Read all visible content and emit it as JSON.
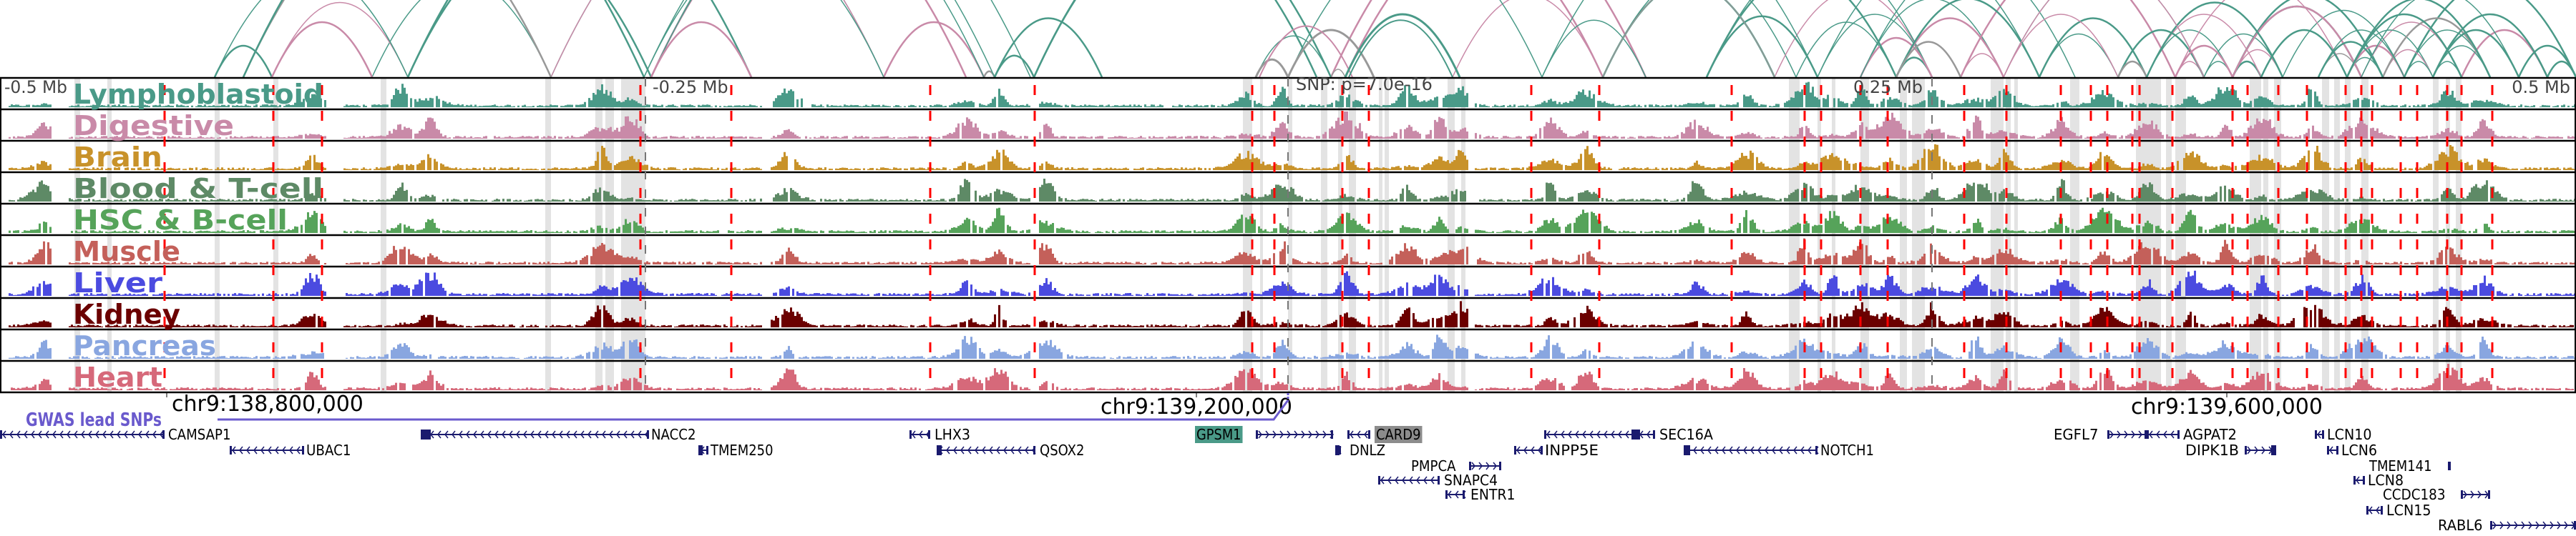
{
  "axis": {
    "minus_half": "-0.5 Mb",
    "minus_quarter": "-0.25 Mb",
    "snp": "SNP: p=7.0e-16",
    "plus_quarter": "0.25 Mb",
    "plus_half": "0.5 Mb"
  },
  "coords": [
    "chr9:138,800,000",
    "chr9:139,200,000",
    "chr9:139,600,000"
  ],
  "gwas_label": "GWAS lead SNPs",
  "colors": {
    "arc_teal": "#4a9a88",
    "arc_pink": "#c98aa8",
    "arc_gray": "#999999",
    "highlight_band": "#e3e3e3",
    "red_marker": "#ff0000",
    "gene": "#1a1a6e",
    "gwas": "#6a5acd"
  },
  "tracks": [
    {
      "label": "Lymphoblastoid",
      "color": "#4a9a88"
    },
    {
      "label": "Digestive",
      "color": "#c98aa8"
    },
    {
      "label": "Brain",
      "color": "#c8922a"
    },
    {
      "label": "Blood & T-cell",
      "color": "#5e8a66"
    },
    {
      "label": "HSC & B-cell",
      "color": "#56a35a"
    },
    {
      "label": "Muscle",
      "color": "#c4605a"
    },
    {
      "label": "Liver",
      "color": "#4b4be0"
    },
    {
      "label": "Kidney",
      "color": "#6b0000"
    },
    {
      "label": "Pancreas",
      "color": "#89a6e0"
    },
    {
      "label": "Heart",
      "color": "#d6697a"
    }
  ],
  "genes": [
    {
      "name": "CAMSAP1"
    },
    {
      "name": "UBAC1"
    },
    {
      "name": "NACC2"
    },
    {
      "name": "TMEM250"
    },
    {
      "name": "LHX3"
    },
    {
      "name": "QSOX2"
    },
    {
      "name": "GPSM1",
      "highlight": "#4a9a88"
    },
    {
      "name": "CARD9",
      "highlight": "#8c8c8c"
    },
    {
      "name": "DNLZ"
    },
    {
      "name": "PMPCA"
    },
    {
      "name": "SNAPC4"
    },
    {
      "name": "ENTR1"
    },
    {
      "name": "INPP5E"
    },
    {
      "name": "SEC16A"
    },
    {
      "name": "NOTCH1"
    },
    {
      "name": "EGFL7"
    },
    {
      "name": "AGPAT2"
    },
    {
      "name": "DIPK1B"
    },
    {
      "name": "LCN10"
    },
    {
      "name": "LCN6"
    },
    {
      "name": "TMEM141"
    },
    {
      "name": "LCN8"
    },
    {
      "name": "CCDC183"
    },
    {
      "name": "LCN15"
    },
    {
      "name": "RABL6"
    }
  ]
}
